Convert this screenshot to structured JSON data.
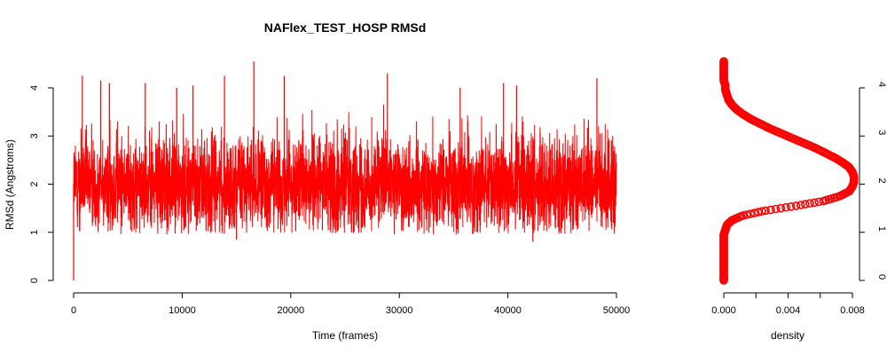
{
  "chart_data": [
    {
      "type": "line",
      "title": "NAFlex_TEST_HOSP RMSd",
      "xlabel": "Time (frames)",
      "ylabel": "RMSd (Angstroms)",
      "xlim": [
        0,
        50000
      ],
      "ylim": [
        0,
        4.3
      ],
      "x_ticks": [
        0,
        10000,
        20000,
        30000,
        40000,
        50000
      ],
      "x_tick_labels": [
        "0",
        "10000",
        "20000",
        "30000",
        "40000",
        "50000"
      ],
      "y_ticks": [
        0,
        1,
        2,
        3,
        4
      ],
      "y_tick_labels": [
        "0",
        "1",
        "2",
        "3",
        "4"
      ],
      "grid": false,
      "series": [
        {
          "color": "#ff0000",
          "n_frames": 50000,
          "mean": 2.0,
          "sd": 0.5,
          "min": 0.0,
          "max": 4.55,
          "peaks": [
            {
              "x": 0,
              "y": 0.0
            },
            {
              "x": 800,
              "y": 4.25
            },
            {
              "x": 2500,
              "y": 4.15
            },
            {
              "x": 3300,
              "y": 4.1
            },
            {
              "x": 6600,
              "y": 4.1
            },
            {
              "x": 9500,
              "y": 4.0
            },
            {
              "x": 11000,
              "y": 4.05
            },
            {
              "x": 13900,
              "y": 4.25
            },
            {
              "x": 15000,
              "y": 0.85
            },
            {
              "x": 16600,
              "y": 4.55
            },
            {
              "x": 19400,
              "y": 4.25
            },
            {
              "x": 28900,
              "y": 4.3
            },
            {
              "x": 35600,
              "y": 4.0
            },
            {
              "x": 39600,
              "y": 4.1
            },
            {
              "x": 40800,
              "y": 4.05
            },
            {
              "x": 42300,
              "y": 0.8
            },
            {
              "x": 48200,
              "y": 4.2
            }
          ]
        }
      ]
    },
    {
      "type": "scatter",
      "title": "",
      "xlabel": "density",
      "ylabel": "",
      "xlim": [
        0,
        0.008
      ],
      "ylim": [
        0,
        4.3
      ],
      "x_ticks": [
        0,
        0.002,
        0.004,
        0.006,
        0.008
      ],
      "x_tick_labels": [
        "0.000",
        "",
        "0.004",
        "",
        "0.008"
      ],
      "y_ticks": [
        0,
        1,
        2,
        3,
        4
      ],
      "y_tick_labels": [
        "0",
        "1",
        "2",
        "3",
        "4"
      ],
      "y_axis_side": "right",
      "grid": false,
      "series": [
        {
          "color": "#ff0000",
          "marker": "open-circle",
          "y": [
            4.55,
            4.45,
            4.35,
            4.25,
            4.15,
            4.05,
            3.95,
            3.85,
            3.75,
            3.65,
            3.55,
            3.45,
            3.35,
            3.25,
            3.15,
            3.05,
            2.95,
            2.85,
            2.75,
            2.65,
            2.55,
            2.45,
            2.35,
            2.25,
            2.15,
            2.05,
            1.95,
            1.85,
            1.75,
            1.65,
            1.55,
            1.45,
            1.35,
            1.25,
            1.15,
            1.05,
            0.95,
            0.85,
            0.75,
            0.65,
            0.55,
            0.45,
            0.35,
            0.25,
            0.15,
            0.05,
            0.0
          ],
          "density": [
            0.0,
            0.0,
            0.0,
            0.0,
            0.0,
            0.0001,
            0.0001,
            0.0002,
            0.0003,
            0.0005,
            0.0008,
            0.0012,
            0.0017,
            0.0023,
            0.0029,
            0.0036,
            0.0043,
            0.005,
            0.0057,
            0.0063,
            0.0069,
            0.0074,
            0.0078,
            0.008,
            0.0081,
            0.0081,
            0.008,
            0.0078,
            0.0072,
            0.0062,
            0.0045,
            0.0026,
            0.0012,
            0.0005,
            0.0002,
            0.0001,
            0.0,
            0.0,
            0.0,
            0.0,
            0.0,
            0.0,
            0.0,
            0.0,
            0.0,
            0.0,
            0.0
          ]
        }
      ]
    }
  ]
}
